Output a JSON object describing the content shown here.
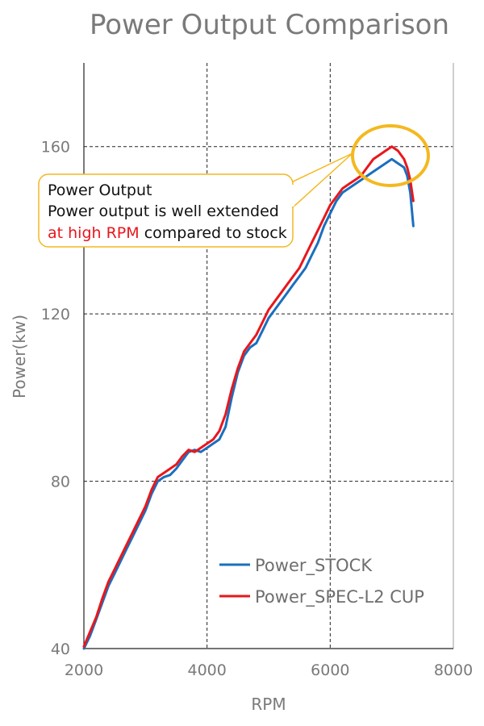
{
  "chart_data": {
    "type": "line",
    "title": "Power Output Comparison",
    "xlabel": "RPM",
    "ylabel": "Power(kw)",
    "xlim": [
      2000,
      8000
    ],
    "ylim": [
      40,
      180
    ],
    "xticks": [
      2000,
      4000,
      6000,
      8000
    ],
    "yticks": [
      40,
      80,
      120,
      160
    ],
    "grid": true,
    "legend_position": "bottom-right",
    "series": [
      {
        "name": "Power_STOCK",
        "color": "#1a6fbf",
        "x": [
          2000,
          2100,
          2200,
          2300,
          2400,
          2500,
          2600,
          2700,
          2800,
          2900,
          3000,
          3100,
          3200,
          3300,
          3400,
          3500,
          3600,
          3700,
          3800,
          3900,
          4000,
          4100,
          4200,
          4300,
          4400,
          4500,
          4600,
          4700,
          4800,
          4900,
          5000,
          5100,
          5200,
          5300,
          5400,
          5500,
          5600,
          5700,
          5800,
          5900,
          6000,
          6100,
          6200,
          6300,
          6400,
          6500,
          6600,
          6700,
          6800,
          6900,
          7000,
          7100,
          7200,
          7250,
          7300,
          7350
        ],
        "y": [
          40,
          43,
          47,
          51,
          55,
          58,
          61,
          64,
          67,
          70,
          73,
          77,
          80,
          81,
          81.5,
          83,
          85,
          87,
          87.5,
          87,
          88,
          89,
          90,
          93,
          100,
          106,
          110,
          112,
          113,
          116,
          119,
          121,
          123,
          125,
          127,
          129,
          131,
          134,
          137,
          141,
          144,
          147,
          149,
          150,
          151,
          152,
          153,
          154,
          155,
          156,
          157,
          156,
          155,
          153,
          149,
          141
        ]
      },
      {
        "name": "Power_SPEC-L2 CUP",
        "color": "#e8171c",
        "x": [
          2000,
          2100,
          2200,
          2300,
          2400,
          2500,
          2600,
          2700,
          2800,
          2900,
          3000,
          3100,
          3200,
          3300,
          3400,
          3500,
          3600,
          3700,
          3800,
          3900,
          4000,
          4100,
          4200,
          4300,
          4400,
          4500,
          4600,
          4700,
          4800,
          4900,
          5000,
          5100,
          5200,
          5300,
          5400,
          5500,
          5600,
          5700,
          5800,
          5900,
          6000,
          6100,
          6200,
          6300,
          6400,
          6500,
          6600,
          6700,
          6800,
          6900,
          7000,
          7100,
          7200,
          7250,
          7300,
          7350
        ],
        "y": [
          40.5,
          44,
          47.5,
          52,
          56,
          59,
          62,
          65,
          68,
          71,
          74,
          78,
          81,
          82,
          83,
          84,
          86,
          87.5,
          87,
          88,
          89,
          90,
          92,
          96,
          102,
          107,
          111,
          113,
          115,
          118,
          121,
          123,
          125,
          127,
          129,
          131,
          134,
          137,
          140,
          143,
          146,
          148,
          150,
          151,
          152,
          153,
          155,
          157,
          158,
          159,
          160,
          159,
          157,
          155,
          152,
          147
        ]
      }
    ],
    "legend": [
      "Power_STOCK",
      "Power_SPEC-L2 CUP"
    ],
    "annotation": {
      "line1": "Power Output",
      "line2": "Power output is well extended",
      "line3_highlight": "at high RPM",
      "line3_rest": " compared to stock",
      "highlight_color": "#e8171c",
      "callout_color": "#f4b820"
    }
  }
}
